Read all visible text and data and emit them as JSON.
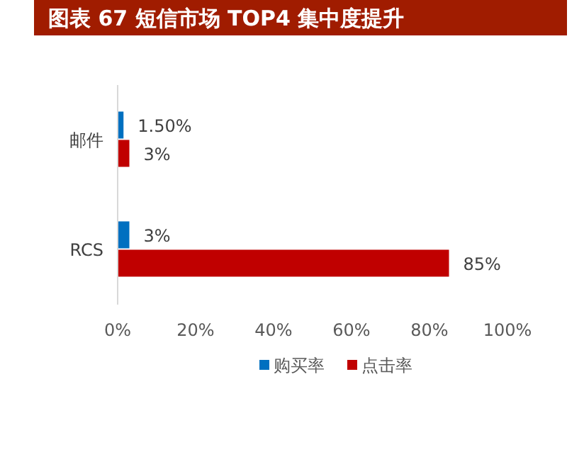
{
  "chart_data": {
    "type": "bar",
    "orientation": "horizontal",
    "title": "图表 67 短信市场 TOP4 集中度提升",
    "categories": [
      "邮件",
      "RCS"
    ],
    "series": [
      {
        "name": "购买率",
        "color": "#0070c0",
        "values": [
          1.5,
          3
        ],
        "value_labels": [
          "1.50%",
          "3%"
        ]
      },
      {
        "name": "点击率",
        "color": "#c00000",
        "values": [
          3,
          85
        ],
        "value_labels": [
          "3%",
          "85%"
        ]
      }
    ],
    "xlim": [
      0,
      100
    ],
    "xticks": [
      {
        "value": 0,
        "label": "0%"
      },
      {
        "value": 20,
        "label": "20%"
      },
      {
        "value": 40,
        "label": "40%"
      },
      {
        "value": 60,
        "label": "60%"
      },
      {
        "value": 80,
        "label": "80%"
      },
      {
        "value": 100,
        "label": "100%"
      }
    ],
    "legend": "bottom"
  }
}
